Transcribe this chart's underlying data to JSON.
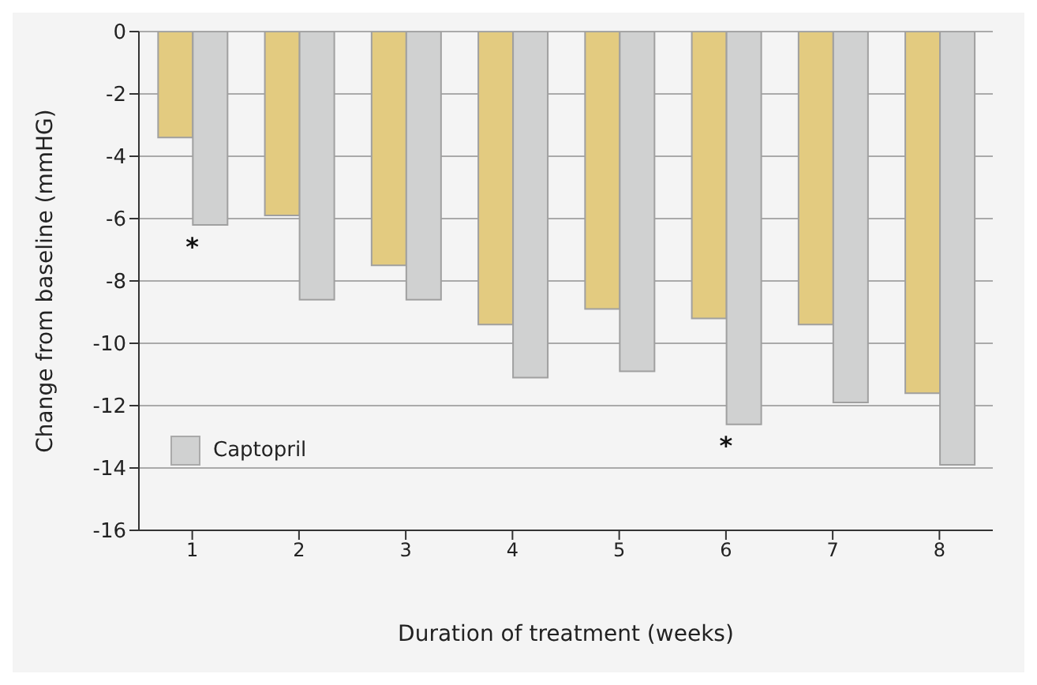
{
  "chart_data": {
    "type": "bar",
    "xlabel": "Duration of treatment (weeks)",
    "ylabel": "Change from baseline (mmHG)",
    "categories": [
      "1",
      "2",
      "3",
      "4",
      "5",
      "6",
      "7",
      "8"
    ],
    "series": [
      {
        "color": "#e3cb80",
        "values": [
          -3.4,
          -5.9,
          -7.5,
          -9.4,
          -8.9,
          -9.2,
          -9.4,
          -11.6
        ]
      },
      {
        "name": "Captopril",
        "color": "#d0d1d1",
        "values": [
          -6.2,
          -8.6,
          -8.6,
          -11.1,
          -10.9,
          -12.6,
          -11.9,
          -13.9
        ]
      }
    ],
    "ylim": [
      -16,
      0
    ],
    "yticks": [
      -16,
      -14,
      -12,
      -10,
      -8,
      -6,
      -4,
      -2,
      0
    ],
    "grid": "y",
    "legend": "bottom left",
    "annotations": [
      {
        "text": "*",
        "x": "1",
        "y": -6.2
      },
      {
        "text": "*",
        "x": "6",
        "y": -12.6
      }
    ]
  }
}
